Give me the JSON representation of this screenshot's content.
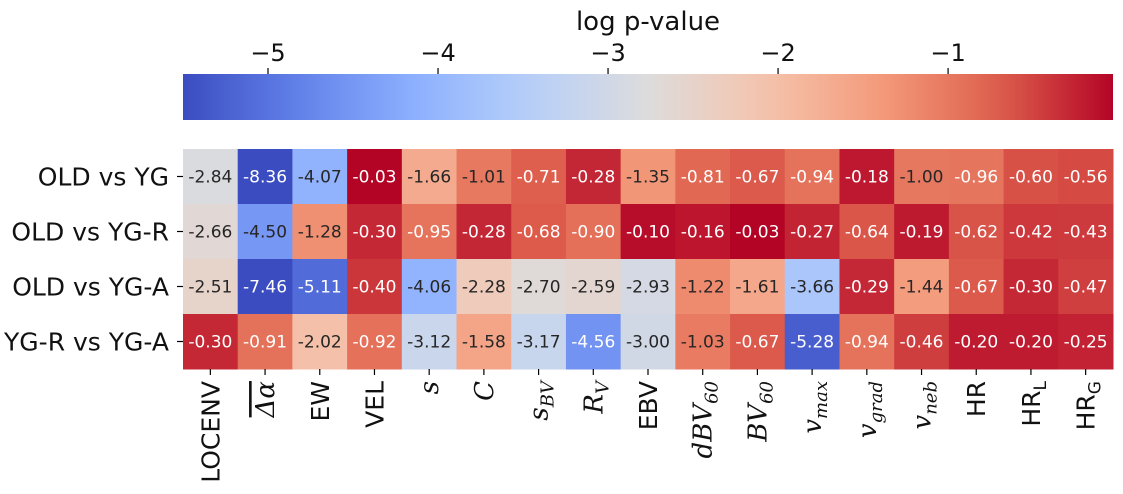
{
  "chart_data": {
    "type": "heatmap",
    "colorbar": {
      "label": "log p-value",
      "ticks": [
        -5,
        -4,
        -3,
        -2,
        -1
      ],
      "tick_labels": [
        "−5",
        "−4",
        "−3",
        "−2",
        "−1"
      ],
      "range": [
        -5.5,
        -0.03
      ],
      "colormap": "coolwarm",
      "orientation": "horizontal",
      "position": "top"
    },
    "rows": [
      "OLD vs YG",
      "OLD vs YG-R",
      "OLD vs YG-A",
      "YG-R vs YG-A"
    ],
    "columns": [
      {
        "label": "LOCENV",
        "style": "sans"
      },
      {
        "label": "Δα",
        "style": "serif-overline"
      },
      {
        "label": "EW",
        "style": "sans"
      },
      {
        "label": "VEL",
        "style": "sans"
      },
      {
        "label": "s",
        "style": "serif-italic"
      },
      {
        "label": "C",
        "style": "serif-cal"
      },
      {
        "label": "s",
        "sub": "BV",
        "style": "serif-italic"
      },
      {
        "label": "R",
        "sub": "V",
        "style": "serif-italic"
      },
      {
        "label": "EBV",
        "style": "sans"
      },
      {
        "label": "dBV",
        "sub": "60",
        "style": "serif-italic"
      },
      {
        "label": "BV",
        "sub": "60",
        "style": "serif-italic"
      },
      {
        "label": "v",
        "sub": "max",
        "style": "serif-italic"
      },
      {
        "label": "v",
        "sub": "grad",
        "style": "serif-italic"
      },
      {
        "label": "v",
        "sub": "neb",
        "style": "serif-italic"
      },
      {
        "label": "HR",
        "style": "sans"
      },
      {
        "label": "HR",
        "sub": "L",
        "style": "sans"
      },
      {
        "label": "HR",
        "sub": "G",
        "style": "sans"
      }
    ],
    "values": [
      [
        -2.84,
        -8.36,
        -4.07,
        -0.03,
        -1.66,
        -1.01,
        -0.71,
        -0.28,
        -1.35,
        -0.81,
        -0.67,
        -0.94,
        -0.18,
        -1.0,
        -0.96,
        -0.6,
        -0.56
      ],
      [
        -2.66,
        -4.5,
        -1.28,
        -0.3,
        -0.95,
        -0.28,
        -0.68,
        -0.9,
        -0.1,
        -0.16,
        -0.03,
        -0.27,
        -0.64,
        -0.19,
        -0.62,
        -0.42,
        -0.43
      ],
      [
        -2.51,
        -7.46,
        -5.11,
        -0.4,
        -4.06,
        -2.28,
        -2.7,
        -2.59,
        -2.93,
        -1.22,
        -1.61,
        -3.66,
        -0.29,
        -1.44,
        -0.67,
        -0.3,
        -0.47
      ],
      [
        -0.3,
        -0.91,
        -2.02,
        -0.92,
        -3.12,
        -1.58,
        -3.17,
        -4.56,
        -3.0,
        -1.03,
        -0.67,
        -5.28,
        -0.94,
        -0.46,
        -0.2,
        -0.2,
        -0.25
      ]
    ]
  }
}
